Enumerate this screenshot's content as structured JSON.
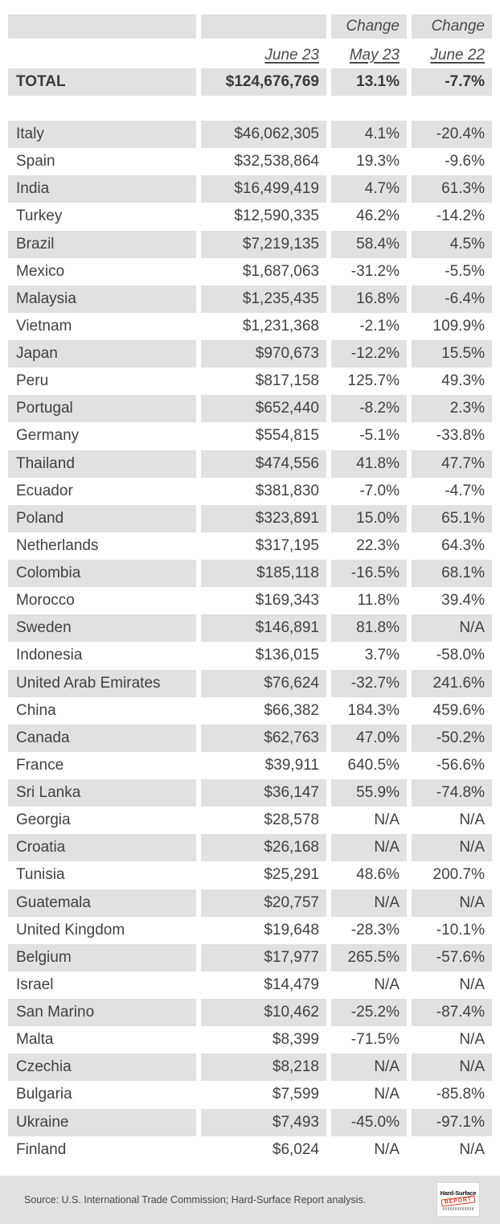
{
  "chart_data": {
    "type": "table",
    "header": {
      "change_label_may": "Change",
      "change_label_june": "Change",
      "col_june23": "June 23",
      "col_may23": "May 23",
      "col_june22": "June 22"
    },
    "total": {
      "label": "TOTAL",
      "value": "$124,676,769",
      "change_may23": "13.1%",
      "change_june22": "-7.7%"
    },
    "rows": [
      {
        "country": "Italy",
        "value": "$46,062,305",
        "change_may23": "4.1%",
        "change_june22": "-20.4%"
      },
      {
        "country": "Spain",
        "value": "$32,538,864",
        "change_may23": "19.3%",
        "change_june22": "-9.6%"
      },
      {
        "country": "India",
        "value": "$16,499,419",
        "change_may23": "4.7%",
        "change_june22": "61.3%"
      },
      {
        "country": "Turkey",
        "value": "$12,590,335",
        "change_may23": "46.2%",
        "change_june22": "-14.2%"
      },
      {
        "country": "Brazil",
        "value": "$7,219,135",
        "change_may23": "58.4%",
        "change_june22": "4.5%"
      },
      {
        "country": "Mexico",
        "value": "$1,687,063",
        "change_may23": "-31.2%",
        "change_june22": "-5.5%"
      },
      {
        "country": "Malaysia",
        "value": "$1,235,435",
        "change_may23": "16.8%",
        "change_june22": "-6.4%"
      },
      {
        "country": "Vietnam",
        "value": "$1,231,368",
        "change_may23": "-2.1%",
        "change_june22": "109.9%"
      },
      {
        "country": "Japan",
        "value": "$970,673",
        "change_may23": "-12.2%",
        "change_june22": "15.5%"
      },
      {
        "country": "Peru",
        "value": "$817,158",
        "change_may23": "125.7%",
        "change_june22": "49.3%"
      },
      {
        "country": "Portugal",
        "value": "$652,440",
        "change_may23": "-8.2%",
        "change_june22": "2.3%"
      },
      {
        "country": "Germany",
        "value": "$554,815",
        "change_may23": "-5.1%",
        "change_june22": "-33.8%"
      },
      {
        "country": "Thailand",
        "value": "$474,556",
        "change_may23": "41.8%",
        "change_june22": "47.7%"
      },
      {
        "country": "Ecuador",
        "value": "$381,830",
        "change_may23": "-7.0%",
        "change_june22": "-4.7%"
      },
      {
        "country": "Poland",
        "value": "$323,891",
        "change_may23": "15.0%",
        "change_june22": "65.1%"
      },
      {
        "country": "Netherlands",
        "value": "$317,195",
        "change_may23": "22.3%",
        "change_june22": "64.3%"
      },
      {
        "country": "Colombia",
        "value": "$185,118",
        "change_may23": "-16.5%",
        "change_june22": "68.1%"
      },
      {
        "country": "Morocco",
        "value": "$169,343",
        "change_may23": "11.8%",
        "change_june22": "39.4%"
      },
      {
        "country": "Sweden",
        "value": "$146,891",
        "change_may23": "81.8%",
        "change_june22": "N/A"
      },
      {
        "country": "Indonesia",
        "value": "$136,015",
        "change_may23": "3.7%",
        "change_june22": "-58.0%"
      },
      {
        "country": "United Arab Emirates",
        "value": "$76,624",
        "change_may23": "-32.7%",
        "change_june22": "241.6%"
      },
      {
        "country": "China",
        "value": "$66,382",
        "change_may23": "184.3%",
        "change_june22": "459.6%"
      },
      {
        "country": "Canada",
        "value": "$62,763",
        "change_may23": "47.0%",
        "change_june22": "-50.2%"
      },
      {
        "country": "France",
        "value": "$39,911",
        "change_may23": "640.5%",
        "change_june22": "-56.6%"
      },
      {
        "country": "Sri Lanka",
        "value": "$36,147",
        "change_may23": "55.9%",
        "change_june22": "-74.8%"
      },
      {
        "country": "Georgia",
        "value": "$28,578",
        "change_may23": "N/A",
        "change_june22": "N/A"
      },
      {
        "country": "Croatia",
        "value": "$26,168",
        "change_may23": "N/A",
        "change_june22": "N/A"
      },
      {
        "country": "Tunisia",
        "value": "$25,291",
        "change_may23": "48.6%",
        "change_june22": "200.7%"
      },
      {
        "country": "Guatemala",
        "value": "$20,757",
        "change_may23": "N/A",
        "change_june22": "N/A"
      },
      {
        "country": "United Kingdom",
        "value": "$19,648",
        "change_may23": "-28.3%",
        "change_june22": "-10.1%"
      },
      {
        "country": "Belgium",
        "value": "$17,977",
        "change_may23": "265.5%",
        "change_june22": "-57.6%"
      },
      {
        "country": "Israel",
        "value": "$14,479",
        "change_may23": "N/A",
        "change_june22": "N/A"
      },
      {
        "country": "San Marino",
        "value": "$10,462",
        "change_may23": "-25.2%",
        "change_june22": "-87.4%"
      },
      {
        "country": "Malta",
        "value": "$8,399",
        "change_may23": "-71.5%",
        "change_june22": "N/A"
      },
      {
        "country": "Czechia",
        "value": "$8,218",
        "change_may23": "N/A",
        "change_june22": "N/A"
      },
      {
        "country": "Bulgaria",
        "value": "$7,599",
        "change_may23": "N/A",
        "change_june22": "-85.8%"
      },
      {
        "country": "Ukraine",
        "value": "$7,493",
        "change_may23": "-45.0%",
        "change_june22": "-97.1%"
      },
      {
        "country": "Finland",
        "value": "$6,024",
        "change_may23": "N/A",
        "change_june22": "N/A"
      }
    ]
  },
  "footer": {
    "source": "Source: U.S. International Trade Commission; Hard-Surface Report analysis.",
    "logo": {
      "line1": "Hard-Surface",
      "line2": "REPORT"
    }
  },
  "colors": {
    "stripe": "#e1e1e1",
    "text": "#414141",
    "logo_red": "#d23b2e"
  }
}
